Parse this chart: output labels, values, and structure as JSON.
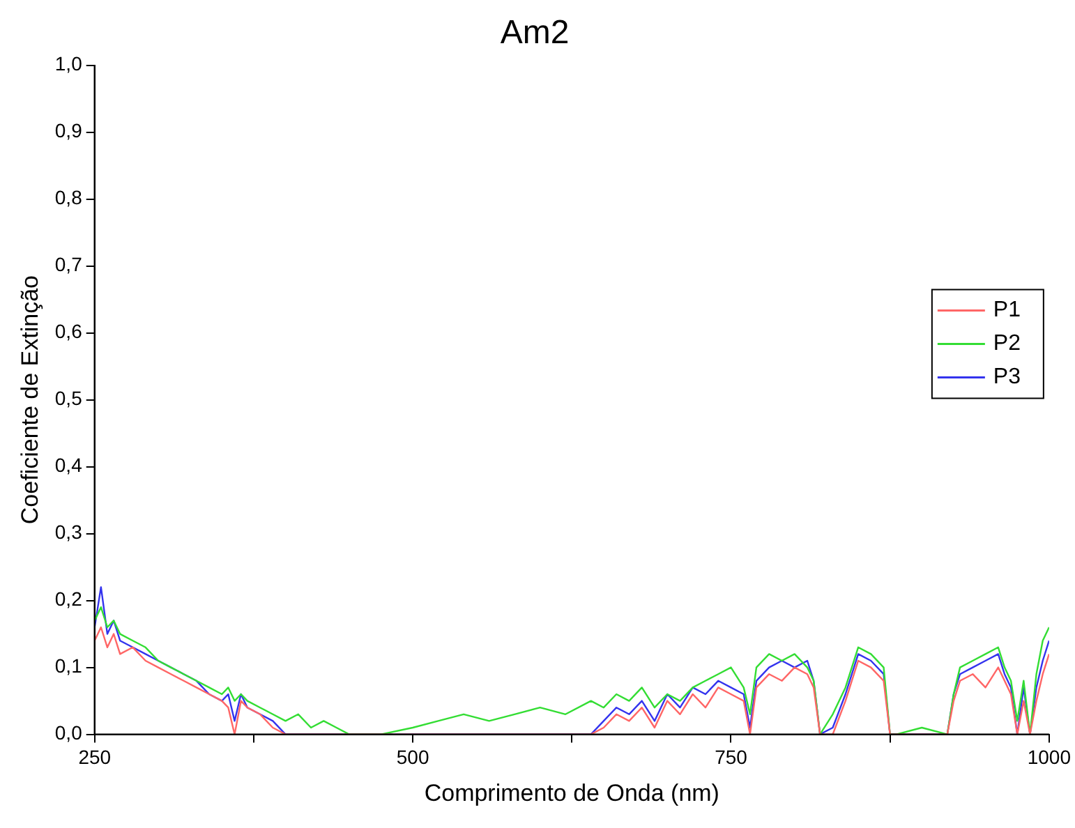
{
  "chart_data": {
    "type": "line",
    "title": "Am2",
    "xlabel": "Comprimento de Onda (nm)",
    "ylabel": "Coeficiente de Extinção",
    "x": [
      250,
      255,
      260,
      265,
      270,
      280,
      290,
      300,
      310,
      320,
      330,
      340,
      350,
      355,
      360,
      365,
      370,
      380,
      390,
      400,
      410,
      420,
      430,
      440,
      450,
      475,
      500,
      520,
      540,
      560,
      580,
      600,
      620,
      640,
      650,
      660,
      670,
      680,
      690,
      700,
      710,
      720,
      730,
      740,
      750,
      760,
      765,
      770,
      780,
      790,
      800,
      810,
      815,
      820,
      830,
      840,
      850,
      860,
      870,
      875,
      880,
      900,
      920,
      925,
      930,
      940,
      950,
      960,
      965,
      970,
      975,
      980,
      985,
      990,
      995,
      1000
    ],
    "series": [
      {
        "name": "P1",
        "color": "#ff6666",
        "values": [
          0.14,
          0.16,
          0.13,
          0.15,
          0.12,
          0.13,
          0.11,
          0.1,
          0.09,
          0.08,
          0.07,
          0.06,
          0.05,
          0.04,
          0.0,
          0.05,
          0.04,
          0.03,
          0.01,
          0,
          0,
          0,
          0,
          0,
          0,
          0,
          0,
          0,
          0,
          0,
          0,
          0,
          0,
          0,
          0.01,
          0.03,
          0.02,
          0.04,
          0.01,
          0.05,
          0.03,
          0.06,
          0.04,
          0.07,
          0.06,
          0.05,
          0.0,
          0.07,
          0.09,
          0.08,
          0.1,
          0.09,
          0.07,
          0,
          0,
          0.05,
          0.11,
          0.1,
          0.08,
          0,
          0,
          0,
          0,
          0.05,
          0.08,
          0.09,
          0.07,
          0.1,
          0.08,
          0.06,
          0,
          0.05,
          0,
          0.05,
          0.09,
          0.12
        ]
      },
      {
        "name": "P2",
        "color": "#33dd33",
        "values": [
          0.17,
          0.19,
          0.16,
          0.17,
          0.15,
          0.14,
          0.13,
          0.11,
          0.1,
          0.09,
          0.08,
          0.07,
          0.06,
          0.07,
          0.05,
          0.06,
          0.05,
          0.04,
          0.03,
          0.02,
          0.03,
          0.01,
          0.02,
          0.01,
          0,
          0,
          0.01,
          0.02,
          0.03,
          0.02,
          0.03,
          0.04,
          0.03,
          0.05,
          0.04,
          0.06,
          0.05,
          0.07,
          0.04,
          0.06,
          0.05,
          0.07,
          0.08,
          0.09,
          0.1,
          0.07,
          0.03,
          0.1,
          0.12,
          0.11,
          0.12,
          0.1,
          0.08,
          0,
          0.03,
          0.07,
          0.13,
          0.12,
          0.1,
          0,
          0,
          0.01,
          0,
          0.06,
          0.1,
          0.11,
          0.12,
          0.13,
          0.1,
          0.08,
          0.02,
          0.08,
          0,
          0.09,
          0.14,
          0.16
        ]
      },
      {
        "name": "P3",
        "color": "#3333ee",
        "values": [
          0.16,
          0.22,
          0.15,
          0.17,
          0.14,
          0.13,
          0.12,
          0.11,
          0.1,
          0.09,
          0.08,
          0.06,
          0.05,
          0.06,
          0.02,
          0.06,
          0.04,
          0.03,
          0.02,
          0,
          0,
          0,
          0,
          0,
          0,
          0,
          0,
          0,
          0,
          0,
          0,
          0,
          0,
          0,
          0.02,
          0.04,
          0.03,
          0.05,
          0.02,
          0.06,
          0.04,
          0.07,
          0.06,
          0.08,
          0.07,
          0.06,
          0.01,
          0.08,
          0.1,
          0.11,
          0.1,
          0.11,
          0.08,
          0,
          0.01,
          0.06,
          0.12,
          0.11,
          0.09,
          0,
          0,
          0,
          0,
          0.06,
          0.09,
          0.1,
          0.11,
          0.12,
          0.09,
          0.07,
          0,
          0.07,
          0,
          0.07,
          0.11,
          0.14
        ]
      }
    ],
    "xlim": [
      250,
      1000
    ],
    "xticks": [
      250,
      {
        "value": 375,
        "label": null
      },
      500,
      {
        "value": 625,
        "label": null
      },
      750,
      {
        "value": 875,
        "label": null
      },
      1000
    ],
    "ylim": [
      0,
      1
    ],
    "yticks": [
      {
        "value": 0,
        "label": "0,0"
      },
      {
        "value": 0.1,
        "label": "0,1"
      },
      {
        "value": 0.2,
        "label": "0,2"
      },
      {
        "value": 0.3,
        "label": "0,3"
      },
      {
        "value": 0.4,
        "label": "0,4"
      },
      {
        "value": 0.5,
        "label": "0,5"
      },
      {
        "value": 0.6,
        "label": "0,6"
      },
      {
        "value": 0.7,
        "label": "0,7"
      },
      {
        "value": 0.8,
        "label": "0,8"
      },
      {
        "value": 0.9,
        "label": "0,9"
      },
      {
        "value": 1,
        "label": "1,0"
      }
    ],
    "grid": false,
    "legend": "right",
    "marker": "none",
    "line_style": "solid"
  }
}
